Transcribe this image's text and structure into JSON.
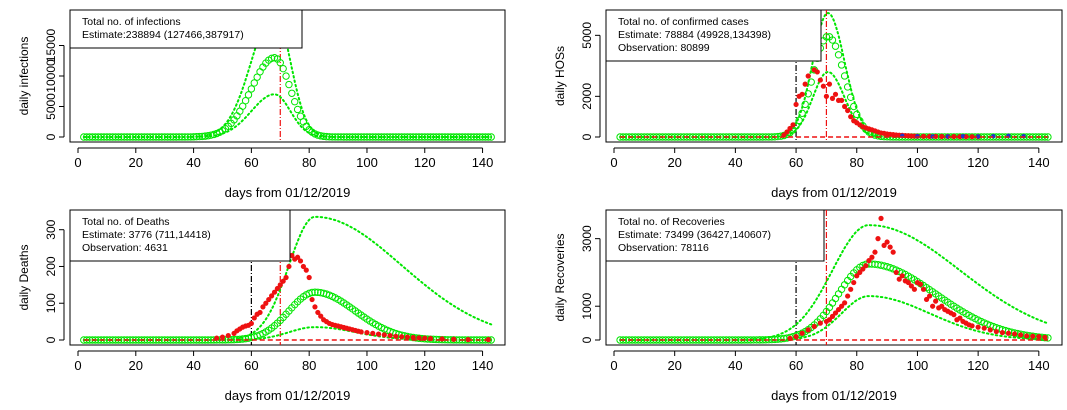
{
  "figure": {
    "colors": {
      "fit": "#00e600",
      "observed": "#ee1111",
      "vline_black": "#000000",
      "vline_red": "#ee1111",
      "axis": "#000000",
      "blue_points": "#2233cc"
    }
  },
  "chart_data": [
    {
      "type": "scatter",
      "id": "infections",
      "xlabel": "days from 01/12/2019",
      "ylabel": "daily infections",
      "xlim": [
        0,
        145
      ],
      "ylim": [
        0,
        20000
      ],
      "xticks": [
        0,
        20,
        40,
        60,
        80,
        100,
        120,
        140
      ],
      "yticks": [
        0,
        5000,
        10000,
        15000
      ],
      "legend": {
        "position": "top-left",
        "lines": [
          "Total no. of infections",
          "Estimate:238894 (127466,387917)"
        ]
      },
      "vlines": [
        {
          "x": 70,
          "color": "red"
        }
      ],
      "curves": {
        "estimate": {
          "peak_x": 68,
          "peak_y": 13000,
          "sigma_left": 8,
          "sigma_right": 5.5,
          "start_x": 2,
          "end_x": 143
        },
        "upper": {
          "peak_x": 68,
          "peak_y": 20500,
          "sigma_left": 8,
          "sigma_right": 5.5
        },
        "lower": {
          "peak_x": 68,
          "peak_y": 7000,
          "sigma_left": 8,
          "sigma_right": 5.5
        }
      },
      "observed": []
    },
    {
      "type": "scatter",
      "id": "confirmed",
      "xlabel": "days from 01/12/2019",
      "ylabel": "daily HOSs",
      "xlim": [
        0,
        145
      ],
      "ylim": [
        0,
        6000
      ],
      "xticks": [
        0,
        20,
        40,
        60,
        80,
        100,
        120,
        140
      ],
      "yticks": [
        0,
        2000,
        5000
      ],
      "legend": {
        "position": "top-left",
        "lines": [
          "Total no. of confirmed cases",
          "Estimate: 78884 (49928,134398)",
          "Observation: 80899"
        ]
      },
      "vlines": [
        {
          "x": 60,
          "color": "black"
        },
        {
          "x": 70,
          "color": "red"
        }
      ],
      "curves": {
        "estimate": {
          "peak_x": 70.5,
          "peak_y": 4950,
          "sigma_left": 5,
          "sigma_right": 5.5,
          "start_x": 2,
          "end_x": 143
        },
        "upper": {
          "peak_x": 70.5,
          "peak_y": 6100,
          "sigma_left": 5,
          "sigma_right": 5.5
        },
        "lower": {
          "peak_x": 70.5,
          "peak_y": 3200,
          "sigma_left": 5,
          "sigma_right": 5.5
        }
      },
      "observed": [
        [
          56,
          100
        ],
        [
          57,
          250
        ],
        [
          58,
          420
        ],
        [
          59,
          600
        ],
        [
          60,
          1600
        ],
        [
          61,
          2000
        ],
        [
          62,
          2100
        ],
        [
          63,
          2600
        ],
        [
          64,
          3000
        ],
        [
          65,
          3900
        ],
        [
          66,
          3300
        ],
        [
          67,
          3200
        ],
        [
          68,
          2800
        ],
        [
          69,
          2500
        ],
        [
          70,
          2000
        ],
        [
          71,
          2600
        ],
        [
          72,
          1900
        ],
        [
          73,
          2100
        ],
        [
          74,
          1800
        ],
        [
          75,
          1800
        ],
        [
          76,
          1500
        ],
        [
          77,
          1300
        ],
        [
          78,
          1000
        ],
        [
          79,
          800
        ],
        [
          80,
          700
        ],
        [
          81,
          600
        ],
        [
          82,
          500
        ],
        [
          83,
          450
        ],
        [
          84,
          400
        ],
        [
          85,
          350
        ],
        [
          86,
          300
        ],
        [
          87,
          250
        ],
        [
          88,
          200
        ],
        [
          89,
          180
        ],
        [
          90,
          150
        ],
        [
          91,
          130
        ],
        [
          92,
          120
        ],
        [
          93,
          100
        ],
        [
          94,
          90
        ],
        [
          95,
          80
        ],
        [
          96,
          70
        ],
        [
          97,
          60
        ],
        [
          98,
          50
        ],
        [
          99,
          45
        ],
        [
          100,
          40
        ],
        [
          102,
          35
        ],
        [
          104,
          30
        ],
        [
          106,
          28
        ],
        [
          108,
          25
        ],
        [
          110,
          22
        ],
        [
          112,
          20
        ],
        [
          114,
          18
        ],
        [
          116,
          16
        ],
        [
          118,
          15
        ],
        [
          120,
          14
        ]
      ],
      "observed_blue": [
        [
          95,
          60
        ],
        [
          100,
          40
        ],
        [
          105,
          30
        ],
        [
          110,
          25
        ],
        [
          115,
          40
        ],
        [
          120,
          25
        ],
        [
          125,
          40
        ],
        [
          130,
          60
        ],
        [
          135,
          40
        ]
      ]
    },
    {
      "type": "scatter",
      "id": "deaths",
      "xlabel": "days from 01/12/2019",
      "ylabel": "daily Deaths",
      "xlim": [
        0,
        145
      ],
      "ylim": [
        0,
        340
      ],
      "xticks": [
        0,
        20,
        40,
        60,
        80,
        100,
        120,
        140
      ],
      "yticks": [
        0,
        100,
        200,
        300
      ],
      "legend": {
        "position": "top-left",
        "lines": [
          "Total no. of Deaths",
          "Estimate: 3776 (711,14418)",
          "Observation: 4631"
        ]
      },
      "vlines": [
        {
          "x": 60,
          "color": "black"
        },
        {
          "x": 70,
          "color": "red"
        }
      ],
      "curves": {
        "estimate": {
          "peak_x": 82,
          "peak_y": 130,
          "sigma_left": 9,
          "sigma_right": 14,
          "start_x": 2,
          "end_x": 143
        },
        "upper": {
          "peak_x": 82,
          "peak_y": 335,
          "sigma_left": 9,
          "sigma_right": 30
        },
        "lower": {
          "peak_x": 82,
          "peak_y": 35,
          "sigma_left": 9,
          "sigma_right": 14
        }
      },
      "observed": [
        [
          48,
          5
        ],
        [
          50,
          8
        ],
        [
          52,
          12
        ],
        [
          54,
          18
        ],
        [
          55,
          25
        ],
        [
          56,
          30
        ],
        [
          57,
          35
        ],
        [
          58,
          38
        ],
        [
          59,
          40
        ],
        [
          60,
          45
        ],
        [
          61,
          60
        ],
        [
          62,
          70
        ],
        [
          63,
          75
        ],
        [
          64,
          90
        ],
        [
          65,
          100
        ],
        [
          66,
          110
        ],
        [
          67,
          120
        ],
        [
          68,
          130
        ],
        [
          69,
          140
        ],
        [
          70,
          150
        ],
        [
          71,
          160
        ],
        [
          72,
          170
        ],
        [
          73,
          200
        ],
        [
          74,
          230
        ],
        [
          75,
          220
        ],
        [
          76,
          225
        ],
        [
          77,
          215
        ],
        [
          78,
          200
        ],
        [
          79,
          190
        ],
        [
          80,
          170
        ],
        [
          81,
          110
        ],
        [
          82,
          90
        ],
        [
          83,
          75
        ],
        [
          84,
          65
        ],
        [
          85,
          55
        ],
        [
          86,
          50
        ],
        [
          87,
          45
        ],
        [
          88,
          42
        ],
        [
          89,
          40
        ],
        [
          90,
          38
        ],
        [
          91,
          36
        ],
        [
          92,
          34
        ],
        [
          93,
          32
        ],
        [
          94,
          30
        ],
        [
          95,
          28
        ],
        [
          96,
          26
        ],
        [
          97,
          24
        ],
        [
          98,
          22
        ],
        [
          100,
          20
        ],
        [
          102,
          18
        ],
        [
          104,
          16
        ],
        [
          106,
          14
        ],
        [
          108,
          12
        ],
        [
          110,
          10
        ],
        [
          112,
          9
        ],
        [
          114,
          8
        ],
        [
          116,
          7
        ],
        [
          118,
          6
        ],
        [
          120,
          5
        ],
        [
          122,
          4
        ],
        [
          126,
          3
        ],
        [
          130,
          2
        ],
        [
          135,
          1
        ],
        [
          142,
          1
        ]
      ]
    },
    {
      "type": "scatter",
      "id": "recoveries",
      "xlabel": "days from 01/12/2019",
      "ylabel": "daily Recoveries",
      "xlim": [
        0,
        145
      ],
      "ylim": [
        0,
        3700
      ],
      "xticks": [
        0,
        20,
        40,
        60,
        80,
        100,
        120,
        140
      ],
      "yticks": [
        0,
        1000,
        3000
      ],
      "legend": {
        "position": "top-left",
        "lines": [
          "Total no. of Recoveries",
          "Estimate: 73499 (36427,140607)",
          "Observation: 78116"
        ]
      },
      "vlines": [
        {
          "x": 60,
          "color": "black"
        },
        {
          "x": 70,
          "color": "red"
        }
      ],
      "curves": {
        "estimate": {
          "peak_x": 84,
          "peak_y": 2250,
          "sigma_left": 10,
          "sigma_right": 22,
          "start_x": 2,
          "end_x": 143
        },
        "upper": {
          "peak_x": 84,
          "peak_y": 3400,
          "sigma_left": 12,
          "sigma_right": 30
        },
        "lower": {
          "peak_x": 84,
          "peak_y": 1300,
          "sigma_left": 9,
          "sigma_right": 20
        }
      },
      "observed": [
        [
          58,
          50
        ],
        [
          60,
          100
        ],
        [
          62,
          200
        ],
        [
          64,
          300
        ],
        [
          66,
          400
        ],
        [
          68,
          500
        ],
        [
          70,
          550
        ],
        [
          71,
          600
        ],
        [
          72,
          700
        ],
        [
          73,
          800
        ],
        [
          74,
          900
        ],
        [
          75,
          1000
        ],
        [
          76,
          1100
        ],
        [
          77,
          1300
        ],
        [
          78,
          1500
        ],
        [
          79,
          1700
        ],
        [
          80,
          1900
        ],
        [
          81,
          2000
        ],
        [
          82,
          2100
        ],
        [
          83,
          2200
        ],
        [
          84,
          2350
        ],
        [
          85,
          2450
        ],
        [
          86,
          2600
        ],
        [
          87,
          3000
        ],
        [
          88,
          3600
        ],
        [
          89,
          2800
        ],
        [
          90,
          2900
        ],
        [
          91,
          2750
        ],
        [
          92,
          2600
        ],
        [
          93,
          2000
        ],
        [
          94,
          1800
        ],
        [
          95,
          1900
        ],
        [
          96,
          1750
        ],
        [
          97,
          1700
        ],
        [
          98,
          1600
        ],
        [
          99,
          1500
        ],
        [
          100,
          1700
        ],
        [
          101,
          1650
        ],
        [
          102,
          1500
        ],
        [
          103,
          1200
        ],
        [
          104,
          1300
        ],
        [
          105,
          1000
        ],
        [
          106,
          1150
        ],
        [
          107,
          950
        ],
        [
          108,
          1000
        ],
        [
          109,
          900
        ],
        [
          110,
          850
        ],
        [
          111,
          800
        ],
        [
          112,
          750
        ],
        [
          113,
          600
        ],
        [
          114,
          650
        ],
        [
          115,
          550
        ],
        [
          116,
          500
        ],
        [
          117,
          450
        ],
        [
          118,
          420
        ],
        [
          120,
          380
        ],
        [
          122,
          350
        ],
        [
          124,
          300
        ],
        [
          126,
          250
        ],
        [
          128,
          220
        ],
        [
          130,
          200
        ],
        [
          132,
          180
        ],
        [
          134,
          150
        ],
        [
          136,
          120
        ],
        [
          138,
          110
        ],
        [
          140,
          100
        ],
        [
          142,
          80
        ]
      ]
    }
  ]
}
